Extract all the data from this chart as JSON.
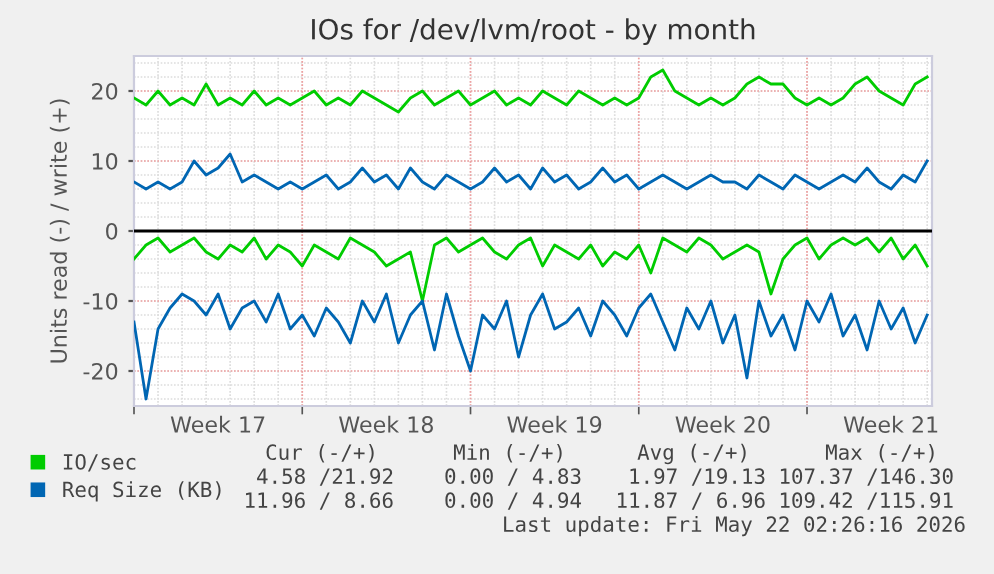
{
  "chart_data": {
    "type": "line",
    "title": "IOs for /dev/lvm/root - by month",
    "ylabel": "Units read (-) / write (+)",
    "categories": [
      null,
      null,
      null,
      null,
      null,
      null,
      null,
      "Week 17",
      null,
      null,
      null,
      null,
      null,
      null,
      null,
      null,
      null,
      null,
      null,
      null,
      null,
      "Week 18",
      null,
      null,
      null,
      null,
      null,
      null,
      null,
      null,
      null,
      null,
      null,
      null,
      null,
      "Week 19",
      null,
      null,
      null,
      null,
      null,
      null,
      null,
      null,
      null,
      null,
      null,
      null,
      null,
      "Week 20",
      null,
      null,
      null,
      null,
      null,
      null,
      null,
      null,
      null,
      null,
      null,
      null,
      null,
      "Week 21",
      null,
      null,
      null
    ],
    "series": [
      {
        "name": "IO/sec",
        "color": "#00cc00",
        "values": [
          19,
          18,
          20,
          18,
          19,
          18,
          21,
          18,
          19,
          18,
          20,
          18,
          19,
          18,
          19,
          20,
          18,
          19,
          18,
          20,
          19,
          18,
          17,
          19,
          20,
          18,
          19,
          20,
          18,
          19,
          20,
          18,
          19,
          18,
          20,
          19,
          18,
          20,
          19,
          18,
          19,
          18,
          19,
          22,
          23,
          20,
          19,
          18,
          19,
          18,
          19,
          21,
          22,
          21,
          21,
          19,
          18,
          19,
          18,
          19,
          21,
          22,
          20,
          19,
          18,
          21,
          22
        ]
      },
      {
        "color": "#00cc00",
        "values": [
          -4,
          -2,
          -1,
          -3,
          -2,
          -1,
          -3,
          -4,
          -2,
          -3,
          -1,
          -4,
          -2,
          -3,
          -5,
          -2,
          -3,
          -4,
          -1,
          -2,
          -3,
          -5,
          -4,
          -3,
          -10,
          -2,
          -1,
          -3,
          -2,
          -1,
          -3,
          -4,
          -2,
          -1,
          -5,
          -2,
          -3,
          -4,
          -2,
          -5,
          -3,
          -4,
          -2,
          -6,
          -1,
          -2,
          -3,
          -1,
          -2,
          -4,
          -3,
          -2,
          -3,
          -9,
          -4,
          -2,
          -1,
          -4,
          -2,
          -1,
          -2,
          -1,
          -3,
          -1,
          -4,
          -2,
          -5
        ]
      },
      {
        "name": "Req Size (KB)",
        "color": "#0066b3",
        "values": [
          7,
          6,
          7,
          6,
          7,
          10,
          8,
          9,
          11,
          7,
          8,
          7,
          6,
          7,
          6,
          7,
          8,
          6,
          7,
          9,
          7,
          8,
          6,
          9,
          7,
          6,
          8,
          7,
          6,
          7,
          9,
          7,
          8,
          6,
          9,
          7,
          8,
          6,
          7,
          9,
          7,
          8,
          6,
          7,
          8,
          7,
          6,
          7,
          8,
          7,
          7,
          6,
          8,
          7,
          6,
          8,
          7,
          6,
          7,
          8,
          7,
          9,
          7,
          6,
          8,
          7,
          10
        ]
      },
      {
        "color": "#0066b3",
        "values": [
          -13,
          -24,
          -14,
          -11,
          -9,
          -10,
          -12,
          -9,
          -14,
          -11,
          -10,
          -13,
          -9,
          -14,
          -12,
          -15,
          -11,
          -13,
          -16,
          -10,
          -13,
          -9,
          -16,
          -12,
          -10,
          -17,
          -9,
          -15,
          -20,
          -12,
          -14,
          -10,
          -18,
          -12,
          -9,
          -14,
          -13,
          -11,
          -15,
          -10,
          -12,
          -15,
          -11,
          -9,
          -13,
          -17,
          -11,
          -14,
          -10,
          -16,
          -12,
          -21,
          -10,
          -15,
          -12,
          -17,
          -10,
          -13,
          -9,
          -15,
          -12,
          -17,
          -10,
          -14,
          -11,
          -16,
          -12
        ]
      }
    ],
    "ylim": [
      -25,
      25
    ],
    "yticks": [
      -20,
      -10,
      0,
      10,
      20
    ],
    "ref_lines": [
      {
        "axis": "y",
        "value": 0,
        "color": "#000000"
      }
    ],
    "grid": true,
    "legend": "bottom",
    "marker": "none",
    "line_style": "solid",
    "annotations": [
      "Cur (-/+)",
      "Min (-/+)",
      "Avg (-/+)",
      "Max (-/+)",
      "4.58 /21.92",
      "0.00 / 4.83",
      "1.97 /19.13",
      "107.37 /146.30",
      "11.96 / 8.66",
      "0.00 / 4.94",
      "11.87 / 6.96",
      "109.42 /115.91",
      "Last update: Fri May 22 02:26:16 2026"
    ]
  }
}
